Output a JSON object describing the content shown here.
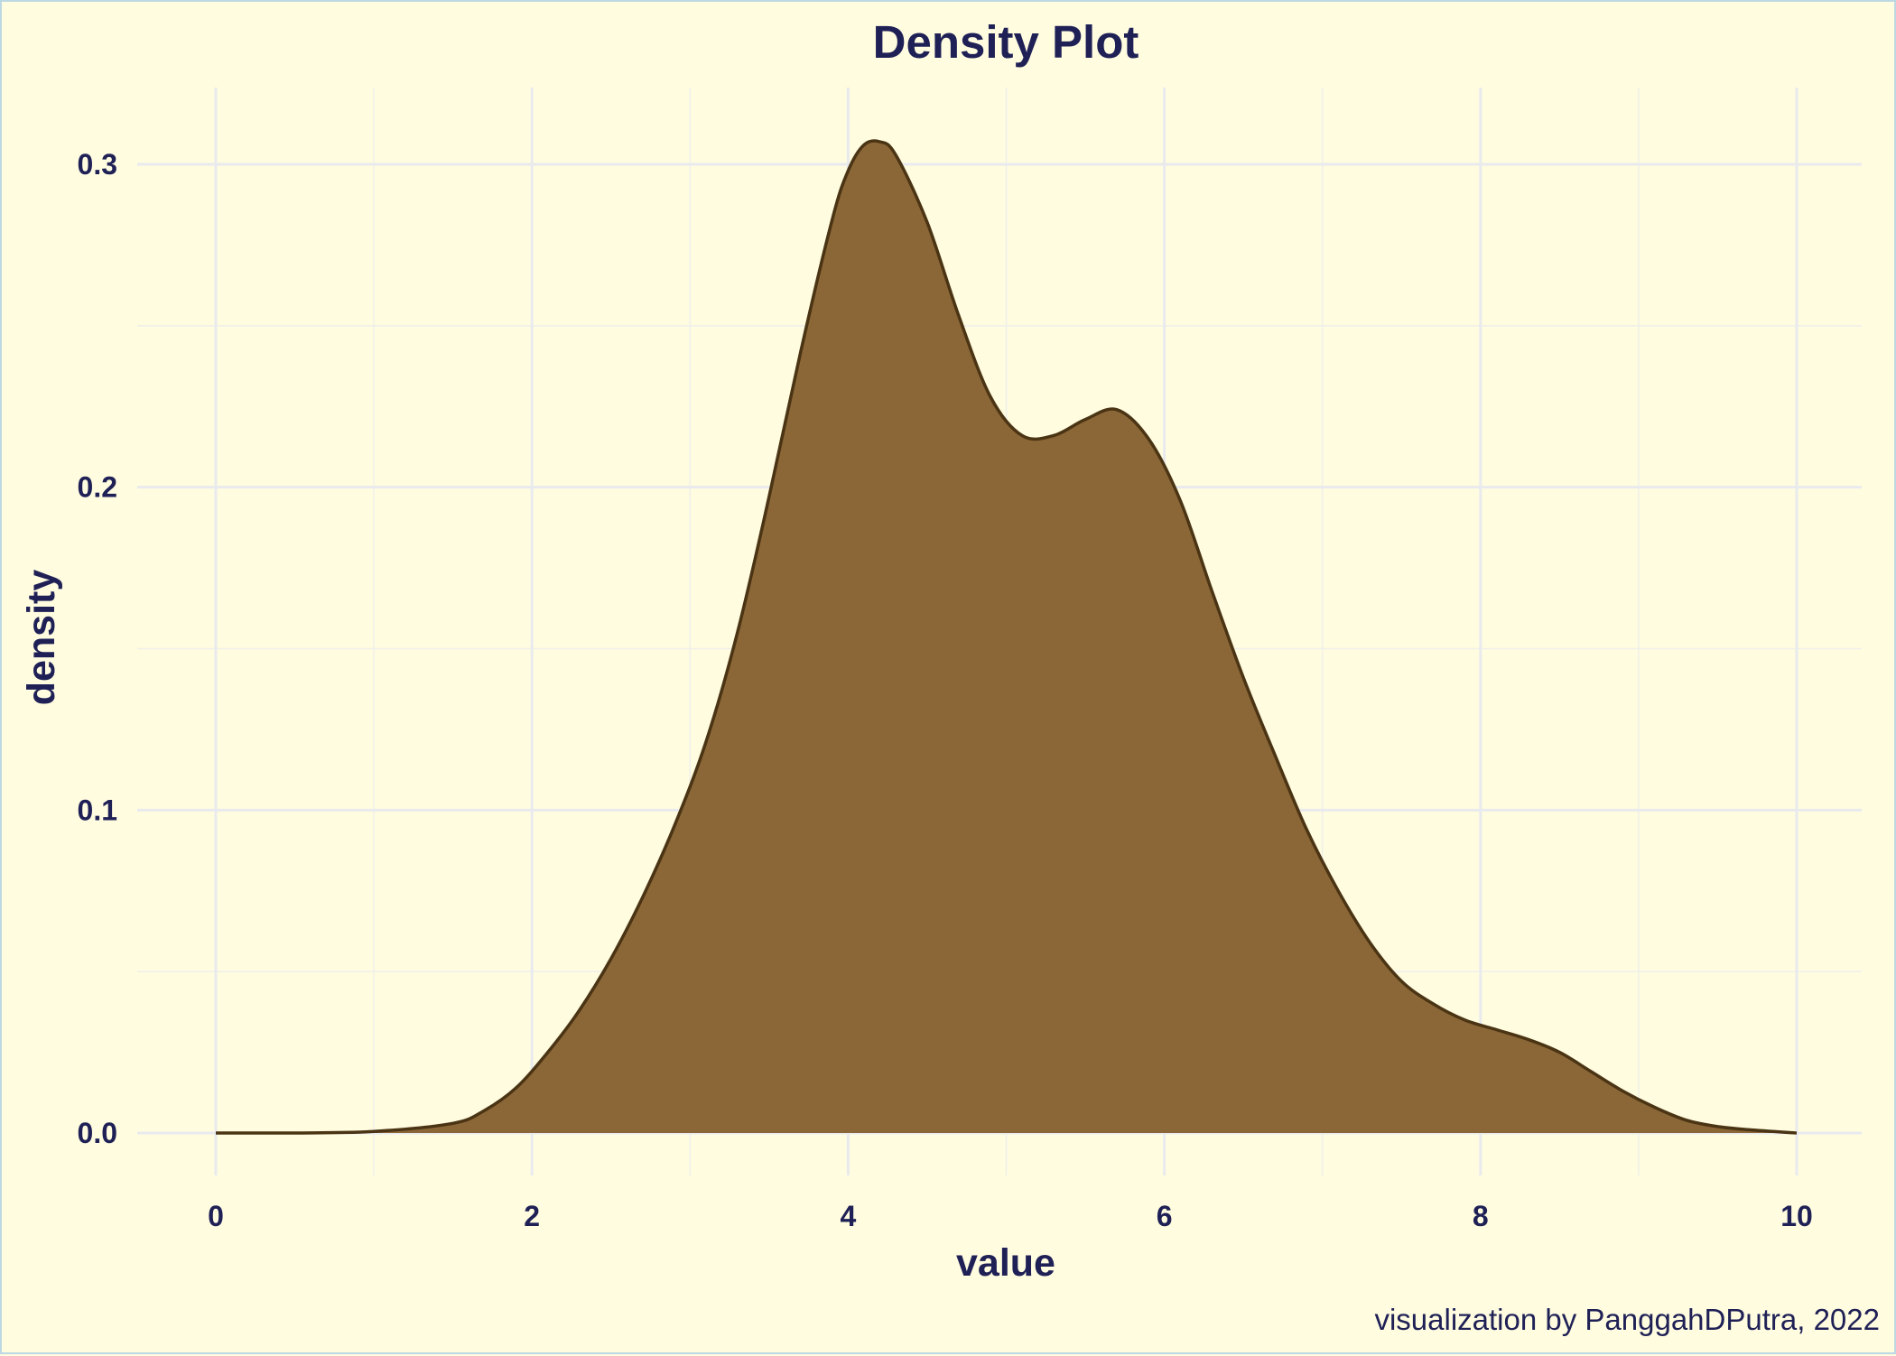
{
  "chart_data": {
    "type": "area",
    "title": "Density Plot",
    "xlabel": "value",
    "ylabel": "density",
    "caption": "visualization by PanggahDPutra, 2022",
    "xlim": [
      0,
      10
    ],
    "ylim": [
      0,
      0.3
    ],
    "x_ticks": [
      0,
      2,
      4,
      6,
      8,
      10
    ],
    "y_ticks": [
      0.0,
      0.1,
      0.2,
      0.3
    ],
    "x_tick_labels": [
      "0",
      "2",
      "4",
      "6",
      "8",
      "10"
    ],
    "y_tick_labels": [
      "0.0",
      "0.1",
      "0.2",
      "0.3"
    ],
    "grid": true,
    "legend": "none",
    "fill_color": "#8b6737",
    "line_color": "#4a3414",
    "series": [
      {
        "x": [
          0,
          0.5,
          1.0,
          1.5,
          1.7,
          1.9,
          2.1,
          2.3,
          2.5,
          2.7,
          2.9,
          3.1,
          3.3,
          3.5,
          3.7,
          3.9,
          4.0,
          4.1,
          4.2,
          4.3,
          4.5,
          4.7,
          4.9,
          5.1,
          5.3,
          5.5,
          5.7,
          5.9,
          6.1,
          6.3,
          6.5,
          6.7,
          6.9,
          7.1,
          7.3,
          7.5,
          7.7,
          7.9,
          8.1,
          8.3,
          8.5,
          8.7,
          8.9,
          9.1,
          9.3,
          9.5,
          9.7,
          10.0
        ],
        "y": [
          0.0,
          0.0,
          0.0005,
          0.003,
          0.007,
          0.014,
          0.025,
          0.038,
          0.054,
          0.073,
          0.095,
          0.121,
          0.155,
          0.197,
          0.242,
          0.283,
          0.298,
          0.306,
          0.307,
          0.303,
          0.282,
          0.253,
          0.228,
          0.216,
          0.216,
          0.221,
          0.224,
          0.215,
          0.196,
          0.168,
          0.141,
          0.117,
          0.094,
          0.075,
          0.059,
          0.047,
          0.04,
          0.035,
          0.032,
          0.029,
          0.025,
          0.019,
          0.013,
          0.008,
          0.004,
          0.002,
          0.001,
          0.0
        ]
      }
    ]
  }
}
